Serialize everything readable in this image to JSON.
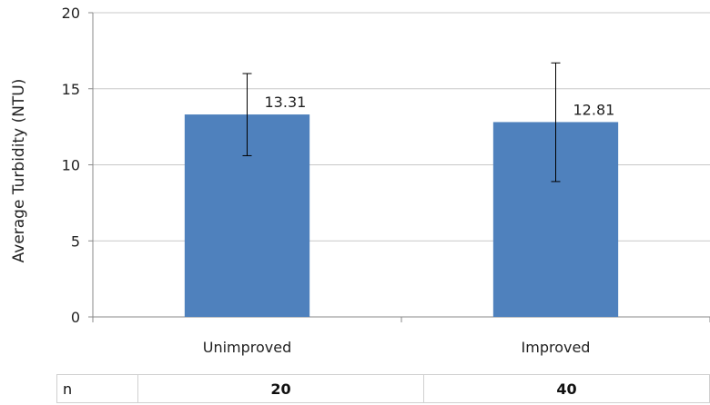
{
  "chart_data": {
    "type": "bar",
    "title": "",
    "xlabel": "",
    "ylabel": "Average Turbidity (NTU)",
    "ylim": [
      0,
      20
    ],
    "yticks": [
      0,
      5,
      10,
      15,
      20
    ],
    "grid": true,
    "categories": [
      "Unimproved",
      "Improved"
    ],
    "values": [
      13.31,
      12.81
    ],
    "data_labels": [
      "13.31",
      "12.81"
    ],
    "error_bars": [
      {
        "low": 10.6,
        "high": 16.0
      },
      {
        "low": 8.9,
        "high": 16.7
      }
    ],
    "bar_color": "#4f81bd"
  },
  "n_table": {
    "key": "n",
    "values": [
      "20",
      "40"
    ]
  }
}
